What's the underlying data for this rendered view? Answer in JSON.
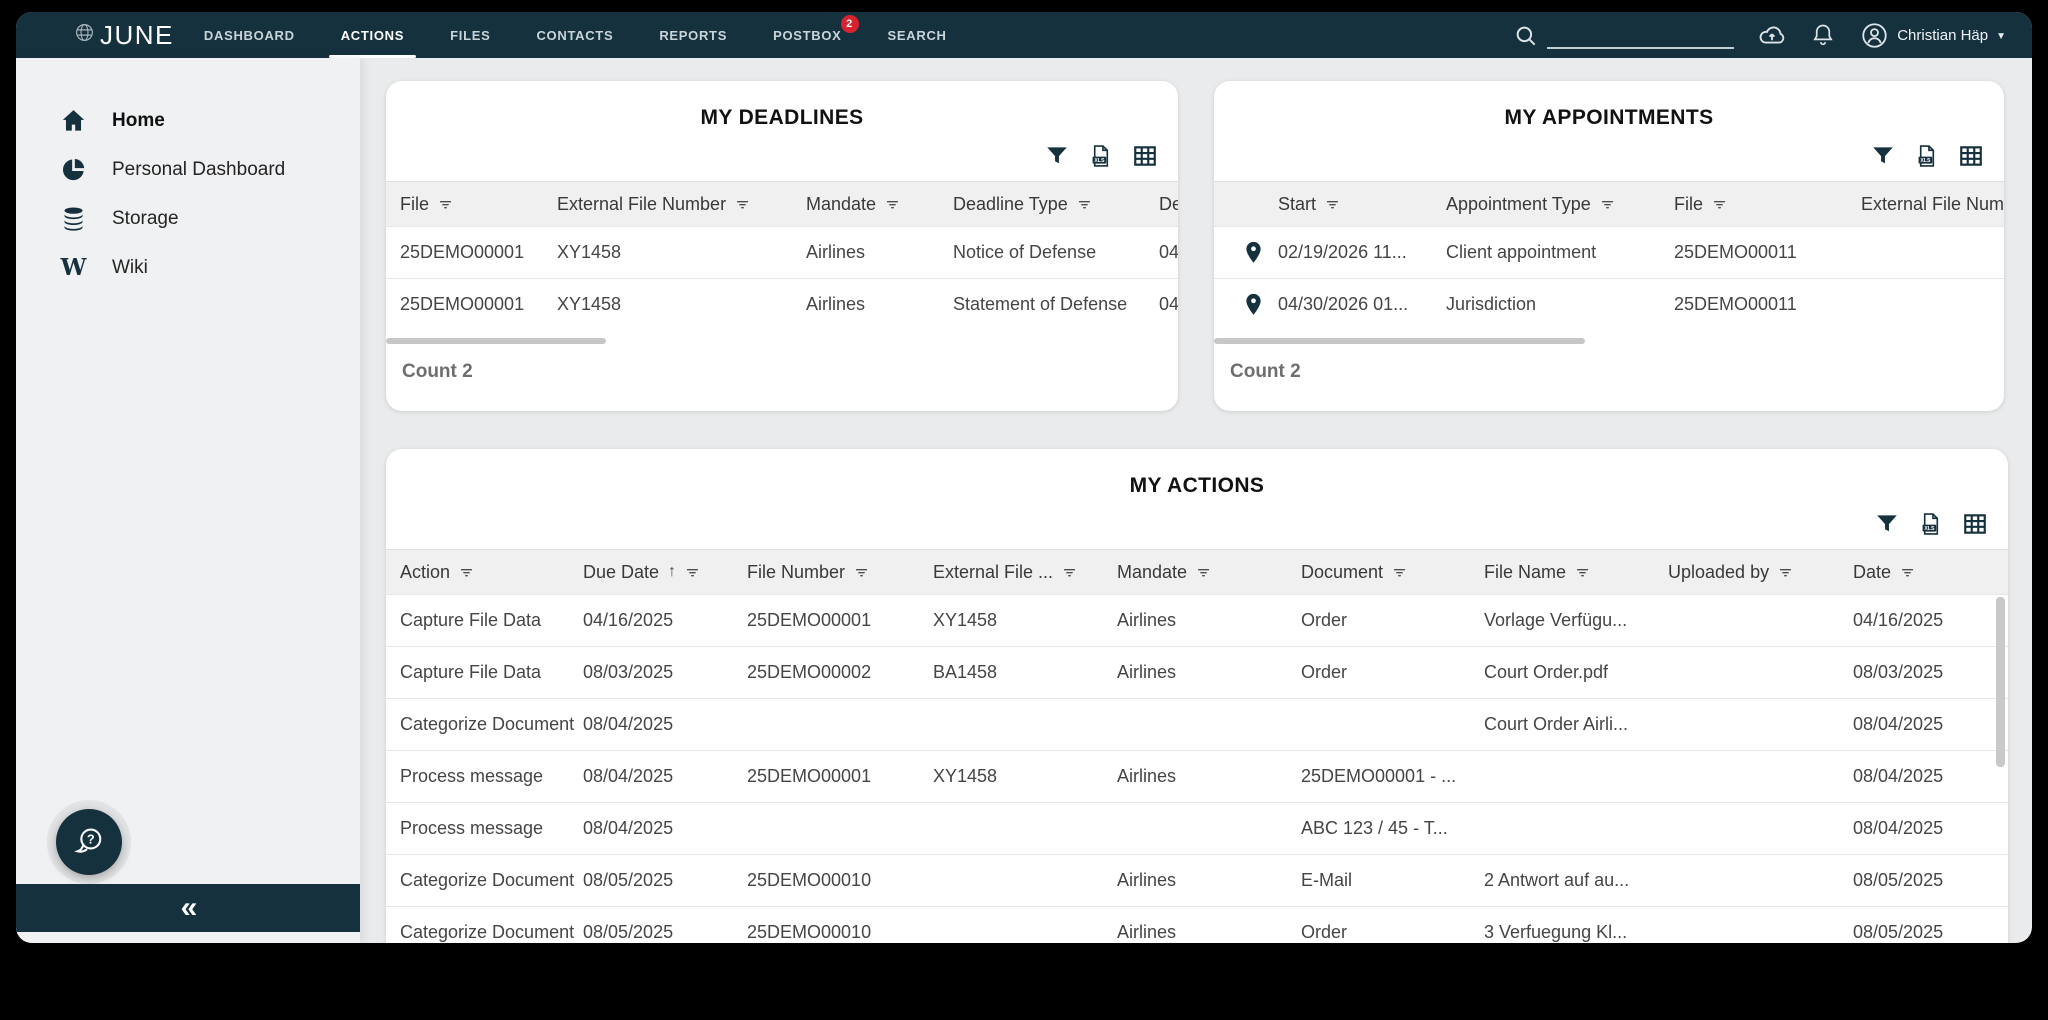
{
  "colors": {
    "navy": "#16313e",
    "badge_red": "#d8222e",
    "page_bg": "#e9ebec",
    "sidebar_bg": "#f0f1f2",
    "header_row_bg": "#f0f0f0"
  },
  "topbar": {
    "logo_text": "JUNE",
    "nav_items": [
      {
        "label": "DASHBOARD",
        "active": false
      },
      {
        "label": "ACTIONS",
        "active": true
      },
      {
        "label": "FILES",
        "active": false
      },
      {
        "label": "CONTACTS",
        "active": false
      },
      {
        "label": "REPORTS",
        "active": false
      },
      {
        "label": "POSTBOX",
        "active": false,
        "badge": "2"
      },
      {
        "label": "SEARCH",
        "active": false
      }
    ],
    "search_value": "",
    "user_name": "Christian Häp"
  },
  "sidebar": {
    "items": [
      {
        "label": "Home",
        "icon": "home-icon",
        "active": true
      },
      {
        "label": "Personal Dashboard",
        "icon": "pie-chart-icon",
        "active": false
      },
      {
        "label": "Storage",
        "icon": "database-icon",
        "active": false
      },
      {
        "label": "Wiki",
        "icon": "wiki-icon",
        "active": false
      }
    ]
  },
  "cards": {
    "deadlines": {
      "title": "MY DEADLINES",
      "columns": [
        "File",
        "External File Number",
        "Mandate",
        "Deadline Type",
        "De"
      ],
      "rows": [
        [
          "25DEMO00001",
          "XY1458",
          "Airlines",
          "Notice of Defense",
          "04"
        ],
        [
          "25DEMO00001",
          "XY1458",
          "Airlines",
          "Statement of Defense",
          "04"
        ]
      ],
      "count_label": "Count 2"
    },
    "appointments": {
      "title": "MY APPOINTMENTS",
      "columns": [
        "Start",
        "Appointment Type",
        "File",
        "External File Number"
      ],
      "rows": [
        [
          "02/19/2026 11...",
          "Client appointment",
          "25DEMO00011",
          ""
        ],
        [
          "04/30/2026 01...",
          "Jurisdiction",
          "25DEMO00011",
          ""
        ]
      ],
      "count_label": "Count 2"
    },
    "actions": {
      "title": "MY ACTIONS",
      "columns": [
        "Action",
        "Due Date",
        "File Number",
        "External File ...",
        "Mandate",
        "Document",
        "File Name",
        "Uploaded by",
        "Date"
      ],
      "sorted_column": "Due Date",
      "sort_direction": "ascending",
      "rows": [
        [
          "Capture File Data",
          "04/16/2025",
          "25DEMO00001",
          "XY1458",
          "Airlines",
          "Order",
          "Vorlage Verfügu...",
          "",
          "04/16/2025"
        ],
        [
          "Capture File Data",
          "08/03/2025",
          "25DEMO00002",
          "BA1458",
          "Airlines",
          "Order",
          "Court Order.pdf",
          "",
          "08/03/2025"
        ],
        [
          "Categorize Document",
          "08/04/2025",
          "",
          "",
          "",
          "",
          "Court Order Airli...",
          "",
          "08/04/2025"
        ],
        [
          "Process message",
          "08/04/2025",
          "25DEMO00001",
          "XY1458",
          "Airlines",
          "25DEMO00001 - ...",
          "",
          "",
          "08/04/2025"
        ],
        [
          "Process message",
          "08/04/2025",
          "",
          "",
          "",
          "ABC 123 / 45 - T...",
          "",
          "",
          "08/04/2025"
        ],
        [
          "Categorize Document",
          "08/05/2025",
          "25DEMO00010",
          "",
          "Airlines",
          "E-Mail",
          "2 Antwort auf au...",
          "",
          "08/05/2025"
        ],
        [
          "Categorize Document",
          "08/05/2025",
          "25DEMO00010",
          "",
          "Airlines",
          "Order",
          "3 Verfuegung Kl...",
          "",
          "08/05/2025"
        ]
      ]
    }
  }
}
